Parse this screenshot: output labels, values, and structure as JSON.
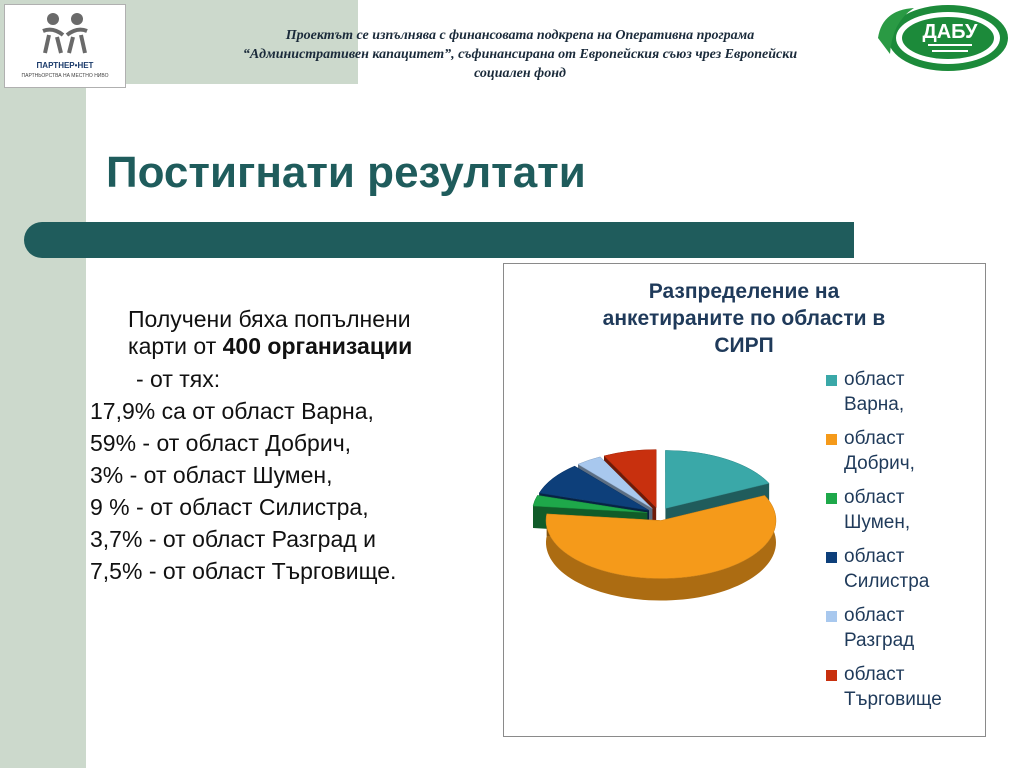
{
  "header": {
    "funding_lines": [
      "Проектът се изпълнява с финансовата подкрепа на Оперативна програма",
      "“Административен капацитет”, съфинансирана от Европейския съюз чрез Европейски",
      "социален фонд"
    ]
  },
  "logos": {
    "left_brand": "ПАРТНЕР•НЕТ",
    "left_sub": "ПАРТНЬОРСТВА НА МЕСТНО НИВО",
    "right_brand": "ДАБУ"
  },
  "slide": {
    "title": "Постигнати резултати",
    "intro_line1": "Получени бяха попълнени",
    "intro_line2_prefix": "карти от ",
    "intro_line2_bold": "400 организации",
    "intro_line3": "- от тях:",
    "stats": [
      "17,9%  са от област Варна,",
      "59%   - от област Добрич,",
      "3%     - от област Шумен,",
      "9 %   - от област Силистра,",
      "3,7% - от област Разград и",
      "7,5% - от област Търговище."
    ]
  },
  "chart_data": {
    "type": "pie",
    "title_lines": [
      "Разпределение на",
      "анкетираните по области в",
      "СИРП"
    ],
    "categories": [
      [
        "област",
        "Варна,"
      ],
      [
        "област",
        "Добрич,"
      ],
      [
        "област",
        "Шумен,"
      ],
      [
        "област",
        "Силистра"
      ],
      [
        "област",
        "Разград"
      ],
      [
        "област",
        "Търговище"
      ]
    ],
    "values": [
      17.9,
      59,
      3,
      9,
      3.7,
      7.5
    ],
    "colors": [
      "#3aa8a8",
      "#f59a1a",
      "#1ea84a",
      "#0d3f7a",
      "#a8c8ee",
      "#c8300e"
    ],
    "exploded": true,
    "style": "3d",
    "legend_position": "right"
  }
}
